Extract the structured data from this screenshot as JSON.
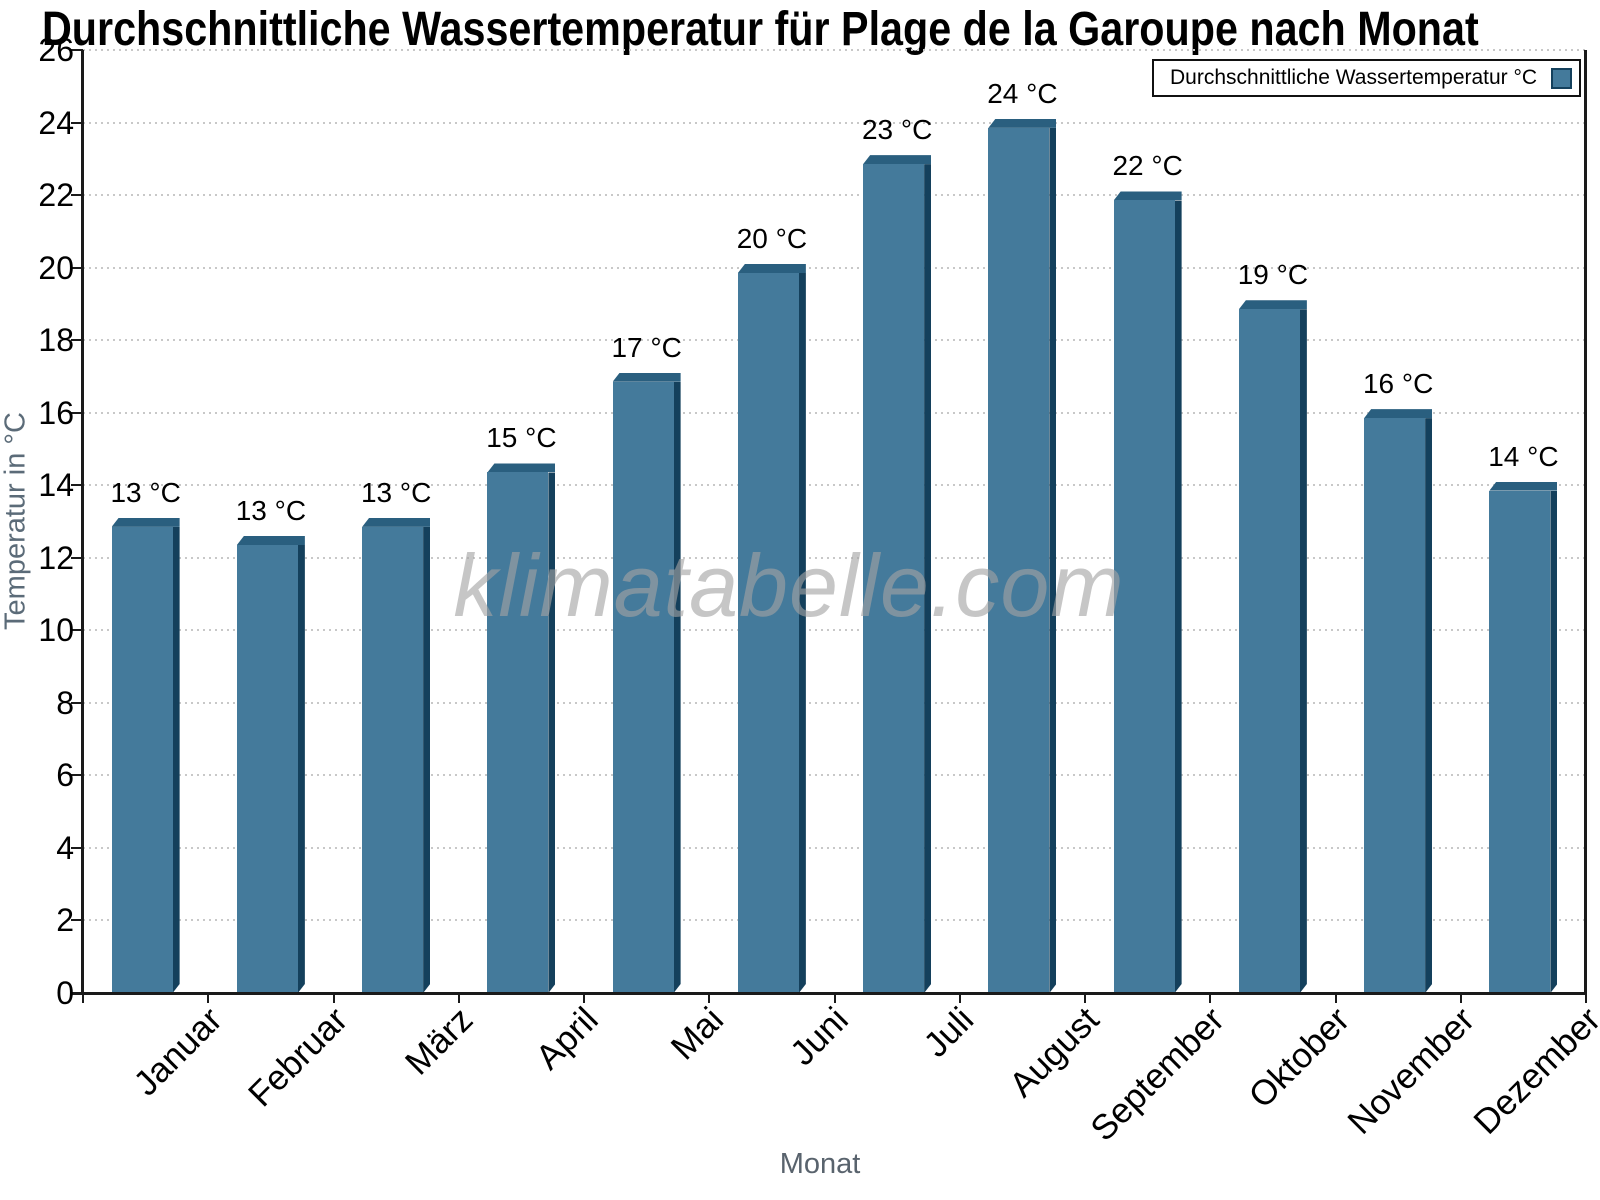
{
  "chart_data": {
    "type": "bar",
    "title": "Durchschnittliche Wassertemperatur für Plage de la Garoupe nach Monat",
    "xlabel": "Monat",
    "ylabel": "Temperatur in °C",
    "ylim": [
      0,
      26
    ],
    "ytick_step": 2,
    "yticks": [
      0,
      2,
      4,
      6,
      8,
      10,
      12,
      14,
      16,
      18,
      20,
      22,
      24,
      26
    ],
    "categories": [
      "Januar",
      "Februar",
      "März",
      "April",
      "Mai",
      "Juni",
      "Juli",
      "August",
      "September",
      "Oktober",
      "November",
      "Dezember"
    ],
    "series": [
      {
        "name": "Durchschnittliche Wassertemperatur °C",
        "values": [
          13.1,
          12.6,
          13.1,
          14.6,
          17.1,
          20.1,
          23.1,
          24.1,
          22.1,
          19.1,
          16.1,
          14.1
        ],
        "labels": [
          "13 °C",
          "13 °C",
          "13 °C",
          "15 °C",
          "17 °C",
          "20 °C",
          "23 °C",
          "24 °C",
          "22 °C",
          "19 °C",
          "16 °C",
          "14 °C"
        ]
      }
    ],
    "legend_position": "top-right",
    "grid": "horizontal dotted",
    "watermark": "klimatabelle.com"
  },
  "legend": {
    "label": "Durchschnittliche Wassertemperatur °C"
  },
  "colors": {
    "bar_face": "#447a9b",
    "bar_side": "#14405c",
    "bar_top": "#2a5f7f",
    "axis": "#1a1a1a",
    "grid": "#c8c8c8",
    "axis_title": "#5b6b78",
    "watermark": "rgba(163,163,163,0.62)"
  }
}
